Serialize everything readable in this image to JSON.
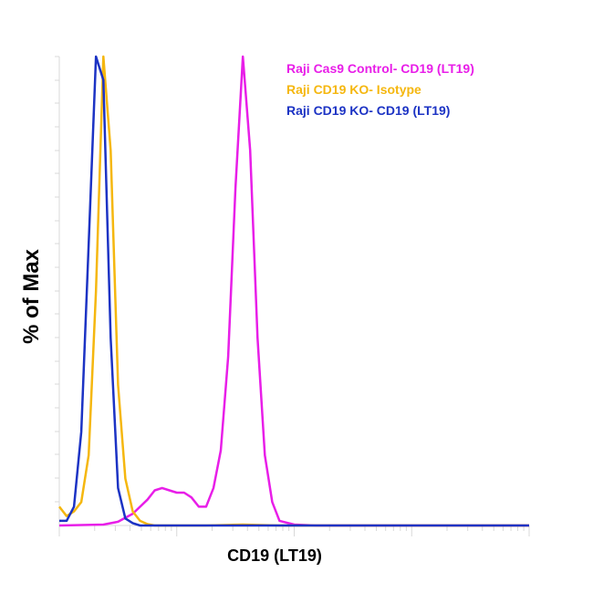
{
  "chart_data": {
    "type": "line",
    "xlabel": "CD19 (LT19)",
    "ylabel": "% of Max",
    "x_scale": "log",
    "xlim": [
      0,
      64
    ],
    "ylim": [
      0,
      100
    ],
    "tick_labels_shown": false,
    "legend_position": "top-right",
    "series": [
      {
        "name": "Raji Cas9 Control- CD19 (LT19)",
        "color": "#e81ee8",
        "x": [
          0,
          6,
          8,
          10,
          12,
          13,
          14,
          15,
          16,
          17,
          18,
          19,
          20,
          21,
          22,
          23,
          24,
          25,
          26,
          27,
          28,
          29,
          30,
          32,
          35,
          40,
          64
        ],
        "y": [
          0,
          0.2,
          0.8,
          2.5,
          5.5,
          7.5,
          8,
          7.5,
          7,
          7,
          6,
          4,
          4,
          8,
          16,
          36,
          72,
          100,
          80,
          40,
          15,
          5,
          1,
          0.2,
          0,
          0,
          0
        ]
      },
      {
        "name": "Raji CD19 KO- Isotype",
        "color": "#f5b70f",
        "x": [
          0,
          1,
          2,
          3,
          4,
          5,
          6,
          7,
          8,
          9,
          10,
          11,
          12,
          13,
          16,
          20,
          25,
          30,
          40,
          64
        ],
        "y": [
          4,
          2,
          3,
          5,
          15,
          50,
          100,
          80,
          30,
          10,
          3,
          1,
          0.3,
          0,
          0,
          0,
          0.2,
          0,
          0,
          0
        ]
      },
      {
        "name": "Raji CD19 KO- CD19 (LT19)",
        "color": "#1c33c4",
        "x": [
          0,
          1,
          2,
          3,
          4,
          5,
          6,
          7,
          8,
          9,
          10,
          11,
          12,
          64
        ],
        "y": [
          1,
          1,
          4,
          20,
          60,
          100,
          95,
          40,
          8,
          1.5,
          0.5,
          0,
          0,
          0
        ]
      }
    ]
  }
}
